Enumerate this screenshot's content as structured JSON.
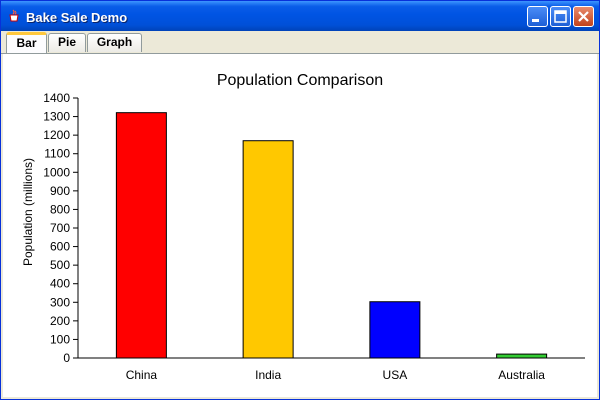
{
  "window": {
    "title": "Bake Sale Demo",
    "controls": {
      "minimize": "minimize-button",
      "maximize": "maximize-button",
      "close": "close-button"
    }
  },
  "tabs": [
    {
      "label": "Bar",
      "selected": true
    },
    {
      "label": "Pie",
      "selected": false
    },
    {
      "label": "Graph",
      "selected": false
    }
  ],
  "colors": {
    "china": "#ff0000",
    "india": "#ffc800",
    "usa": "#0000ff",
    "australia": "#33cc33"
  },
  "chart_data": {
    "type": "bar",
    "title": "Population Comparison",
    "xlabel": "",
    "ylabel": "Population (millions)",
    "categories": [
      "China",
      "India",
      "USA",
      "Australia"
    ],
    "values": [
      1321,
      1170,
      303,
      21
    ],
    "bar_colors": [
      "#ff0000",
      "#ffc800",
      "#0000ff",
      "#33cc33"
    ],
    "ylim": [
      0,
      1400
    ],
    "yticks": [
      0,
      100,
      200,
      300,
      400,
      500,
      600,
      700,
      800,
      900,
      1000,
      1100,
      1200,
      1300,
      1400
    ],
    "grid": false,
    "legend": "none"
  }
}
